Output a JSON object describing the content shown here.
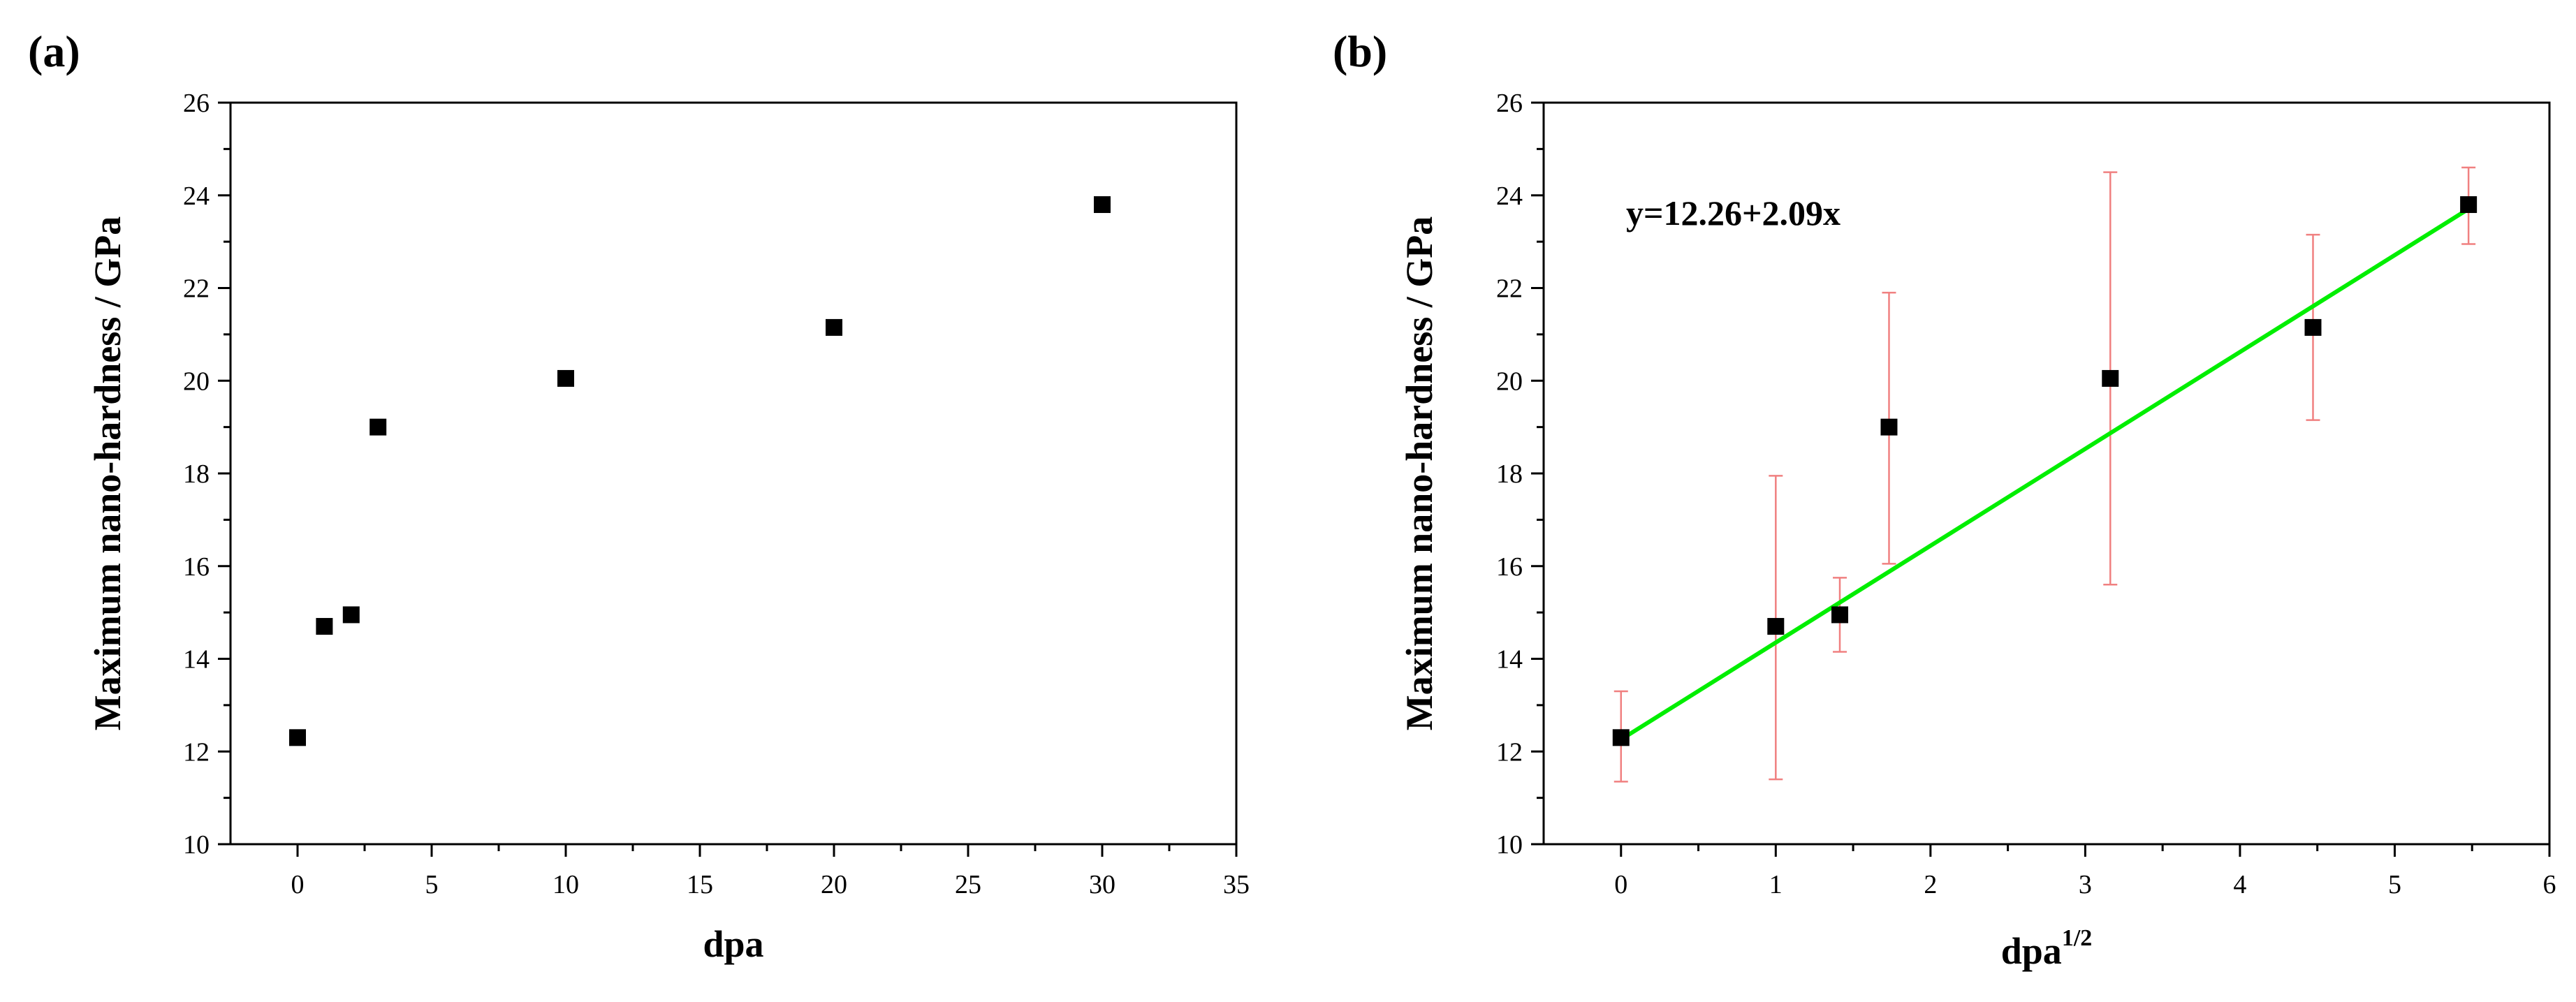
{
  "chart_data": [
    {
      "type": "scatter",
      "panel_label": "(a)",
      "xlabel": "dpa",
      "ylabel": "Maximum nano-hardness / GPa",
      "xlim": [
        -2.5,
        35
      ],
      "ylim": [
        10,
        26
      ],
      "xticks": [
        0,
        5,
        10,
        15,
        20,
        25,
        30,
        35
      ],
      "xtick_labels": [
        "0",
        "5",
        "10",
        "15",
        "20",
        "25",
        "30",
        "35"
      ],
      "yticks": [
        10,
        12,
        14,
        16,
        18,
        20,
        22,
        24,
        26
      ],
      "ytick_labels": [
        "10",
        "12",
        "14",
        "16",
        "18",
        "20",
        "22",
        "24",
        "26"
      ],
      "grid": false,
      "series": [
        {
          "marker": "square",
          "color": "#000000",
          "x": [
            0,
            1,
            2,
            3,
            10,
            20,
            30
          ],
          "y": [
            12.3,
            14.7,
            14.95,
            19.0,
            20.05,
            21.15,
            23.8
          ]
        }
      ]
    },
    {
      "type": "scatter",
      "panel_label": "(b)",
      "xlabel": "dpa",
      "xlabel_superscript": "1/2",
      "ylabel": "Maximum nano-hardness / GPa",
      "xlim": [
        -0.5,
        6
      ],
      "ylim": [
        10,
        26
      ],
      "xticks": [
        0,
        1,
        2,
        3,
        4,
        5,
        6
      ],
      "xtick_labels": [
        "0",
        "1",
        "2",
        "3",
        "4",
        "5",
        "6"
      ],
      "yticks": [
        10,
        12,
        14,
        16,
        18,
        20,
        22,
        24,
        26
      ],
      "ytick_labels": [
        "10",
        "12",
        "14",
        "16",
        "18",
        "20",
        "22",
        "24",
        "26"
      ],
      "grid": false,
      "annotation": "y=12.26+2.09x",
      "series": [
        {
          "marker": "square",
          "color": "#000000",
          "error_color": "#f08080",
          "x": [
            0,
            1,
            1.414,
            1.732,
            3.162,
            4.472,
            5.477
          ],
          "y": [
            12.3,
            14.7,
            14.95,
            19.0,
            20.05,
            21.15,
            23.8
          ],
          "y_err_low": [
            11.35,
            11.4,
            14.15,
            16.05,
            15.6,
            19.15,
            22.95
          ],
          "y_err_high": [
            13.3,
            17.95,
            15.75,
            21.9,
            24.5,
            23.15,
            24.6
          ]
        }
      ],
      "fit": {
        "intercept": 12.26,
        "slope": 2.09,
        "x_range": [
          0,
          5.477
        ],
        "color": "#00ee00"
      }
    }
  ]
}
